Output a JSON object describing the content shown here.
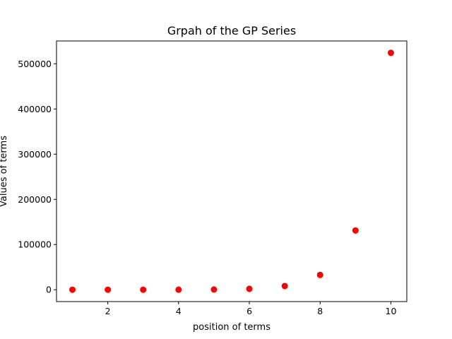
{
  "chart_data": {
    "type": "scatter",
    "title": "Grpah of the GP Series",
    "xlabel": "position of terms",
    "ylabel": "Values of terms",
    "x": [
      1,
      2,
      3,
      4,
      5,
      6,
      7,
      8,
      9,
      10
    ],
    "y": [
      2,
      8,
      32,
      128,
      512,
      2048,
      8192,
      32768,
      131072,
      524288
    ],
    "xlim": [
      0.55,
      10.45
    ],
    "ylim": [
      -26212,
      550500
    ],
    "xticks": [
      2,
      4,
      6,
      8,
      10
    ],
    "xtick_labels": [
      "2",
      "4",
      "6",
      "8",
      "10"
    ],
    "yticks": [
      0,
      100000,
      200000,
      300000,
      400000,
      500000
    ],
    "ytick_labels": [
      "0",
      "100000",
      "200000",
      "300000",
      "400000",
      "500000"
    ],
    "marker_color": "#ff0000",
    "grid": false,
    "legend": "none"
  }
}
